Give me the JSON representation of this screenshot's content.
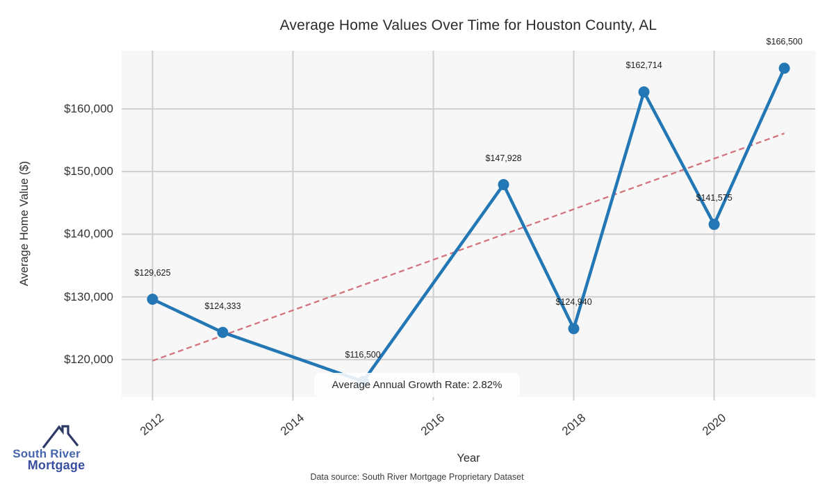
{
  "title": "Average Home Values Over Time for Houston County, AL",
  "footer": "Data source: South River Mortgage Proprietary Dataset",
  "logo": {
    "line1": "South River",
    "line2": "Mortgage"
  },
  "colors": {
    "series": "#2277b4",
    "trend": "#d3737d",
    "grid": "#cfcfcf",
    "plot_background": "#f7f7f7",
    "logo_roof": "#2d3a66",
    "logo_text1": "#4565ae",
    "logo_text2": "#3a4e9f"
  },
  "chart_data": {
    "type": "line",
    "title": "Average Home Values Over Time for Houston County, AL",
    "xlabel": "Year",
    "ylabel": "Average Home Value ($)",
    "x": [
      2012,
      2013,
      2015,
      2017,
      2018,
      2019,
      2020,
      2021
    ],
    "values": [
      129625,
      124333,
      116500,
      147928,
      124940,
      162714,
      141575,
      166500
    ],
    "point_labels": [
      "$129,625",
      "$124,333",
      "$116,500",
      "$147,928",
      "$124,940",
      "$162,714",
      "$141,575",
      "$166,500"
    ],
    "x_ticks": [
      2012,
      2014,
      2016,
      2018,
      2020
    ],
    "x_tick_labels": [
      "2012",
      "2014",
      "2016",
      "2018",
      "2020"
    ],
    "y_ticks": [
      120000,
      130000,
      140000,
      150000,
      160000
    ],
    "y_tick_labels": [
      "$120,000",
      "$130,000",
      "$140,000",
      "$150,000",
      "$160,000"
    ],
    "xlim": [
      2011.56,
      2021.44
    ],
    "ylim": [
      114000,
      169300
    ],
    "grid": true,
    "legend": "none",
    "trend": {
      "style": "dashed",
      "x": [
        2012,
        2021
      ],
      "values": [
        119800,
        156100
      ],
      "label": "trend line"
    },
    "annotation": {
      "text": "Average Annual Growth Rate: 2.82%",
      "anchor_x": 2015,
      "anchor_value": 116500
    }
  }
}
